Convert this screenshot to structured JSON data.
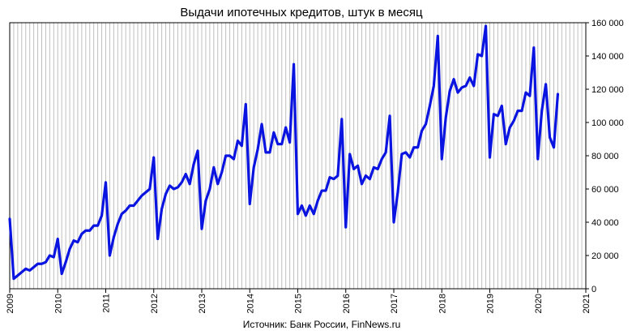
{
  "chart_data": {
    "type": "line",
    "title": "Выдачи ипотечных кредитов, штук  в месяц",
    "source": "Источник:  Банк России, FinNews.ru",
    "xlabel": "",
    "ylabel": "",
    "y_axis_side": "right",
    "ylim": [
      0,
      160000
    ],
    "xlim": [
      2009,
      2021
    ],
    "y_ticks": [
      0,
      20000,
      40000,
      60000,
      80000,
      100000,
      120000,
      140000,
      160000
    ],
    "y_tick_labels": [
      "0",
      "20 000",
      "40 000",
      "60 000",
      "80 000",
      "100 000",
      "120 000",
      "140 000",
      "160 000"
    ],
    "x_ticks": [
      2009,
      2010,
      2011,
      2012,
      2013,
      2014,
      2015,
      2016,
      2017,
      2018,
      2019,
      2020,
      2021
    ],
    "x_tick_labels": [
      "2009",
      "2010",
      "2011",
      "2012",
      "2013",
      "2014",
      "2015",
      "2016",
      "2017",
      "2018",
      "2019",
      "2020",
      "2021"
    ],
    "grid": "vertical-monthly",
    "line_color": "#0a14e0",
    "series": [
      {
        "name": "",
        "start": "2009-01",
        "frequency": "monthly",
        "values": [
          42000,
          6000,
          8000,
          10000,
          12000,
          11000,
          13000,
          15000,
          15000,
          16000,
          20000,
          19000,
          30000,
          9000,
          16000,
          24000,
          29000,
          28000,
          33000,
          35000,
          35000,
          38000,
          38000,
          44000,
          64000,
          20000,
          31000,
          39000,
          45000,
          47000,
          50000,
          50000,
          53000,
          56000,
          58000,
          60000,
          79000,
          30000,
          48000,
          57000,
          62000,
          60000,
          61000,
          64000,
          69000,
          63000,
          75000,
          83000,
          36000,
          53000,
          60000,
          73000,
          63000,
          70000,
          80000,
          80000,
          78000,
          89000,
          86000,
          111000,
          51000,
          73000,
          84000,
          99000,
          82000,
          82000,
          94000,
          87000,
          87000,
          97000,
          88000,
          135000,
          45000,
          50000,
          44000,
          50000,
          45000,
          53000,
          59000,
          59000,
          67000,
          66000,
          68000,
          102000,
          37000,
          81000,
          72000,
          74000,
          63000,
          68000,
          66000,
          73000,
          72000,
          78000,
          82000,
          104000,
          40000,
          58000,
          81000,
          82000,
          79000,
          85000,
          85000,
          95000,
          99000,
          110000,
          122000,
          152000,
          78000,
          103000,
          119000,
          126000,
          118000,
          121000,
          122000,
          127000,
          122000,
          141000,
          140000,
          158000,
          79000,
          105000,
          104000,
          110000,
          87000,
          97000,
          101000,
          107000,
          107000,
          118000,
          116000,
          145000,
          78000,
          107000,
          123000,
          91000,
          85000,
          117000
        ]
      }
    ]
  }
}
